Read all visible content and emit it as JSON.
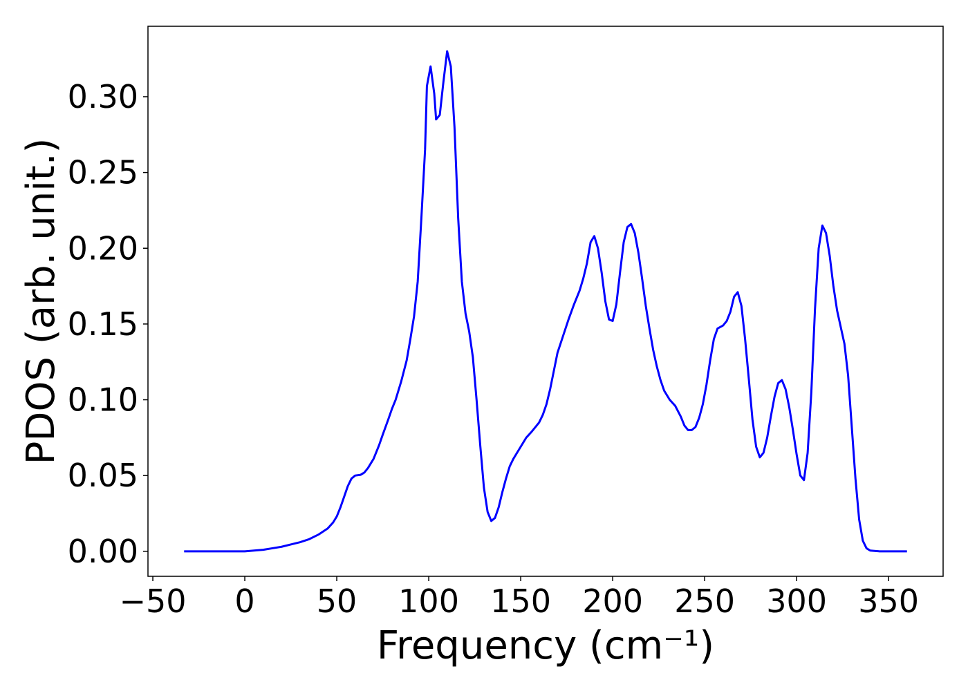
{
  "chart_data": {
    "type": "line",
    "xlabel": "Frequency (cm⁻¹)",
    "ylabel": "PDOS (arb. unit.)",
    "color": "#0000ff",
    "x": [
      -33,
      -20,
      0,
      5,
      10,
      15,
      20,
      25,
      30,
      35,
      40,
      45,
      48,
      50,
      52,
      54,
      56,
      58,
      60,
      63,
      65,
      67,
      70,
      73,
      75,
      78,
      80,
      82,
      85,
      88,
      90,
      92,
      94,
      96,
      98,
      99,
      101,
      103,
      104,
      106,
      108,
      110,
      112,
      114,
      116,
      118,
      120,
      122,
      124,
      126,
      128,
      130,
      132,
      134,
      136,
      138,
      140,
      142,
      144,
      146,
      148,
      150,
      153,
      156,
      158,
      160,
      162,
      164,
      166,
      168,
      170,
      173,
      176,
      179,
      182,
      184,
      186,
      188,
      190,
      192,
      194,
      196,
      198,
      200,
      202,
      204,
      206,
      208,
      210,
      212,
      214,
      216,
      218,
      220,
      222,
      224,
      226,
      228,
      231,
      234,
      237,
      239,
      241,
      243,
      245,
      247,
      249,
      251,
      253,
      255,
      257,
      260,
      262,
      264,
      266,
      268,
      270,
      272,
      274,
      276,
      278,
      280,
      282,
      284,
      286,
      288,
      290,
      292,
      294,
      296,
      298,
      300,
      302,
      304,
      306,
      308,
      310,
      312,
      314,
      316,
      318,
      320,
      322,
      324,
      326,
      328,
      330,
      332,
      334,
      336,
      338,
      340,
      345,
      360
    ],
    "values": [
      0,
      0,
      0,
      0.0005,
      0.001,
      0.002,
      0.003,
      0.0045,
      0.006,
      0.008,
      0.011,
      0.015,
      0.019,
      0.023,
      0.029,
      0.036,
      0.043,
      0.048,
      0.05,
      0.0505,
      0.052,
      0.055,
      0.061,
      0.07,
      0.077,
      0.087,
      0.094,
      0.1,
      0.112,
      0.126,
      0.14,
      0.155,
      0.178,
      0.22,
      0.265,
      0.307,
      0.32,
      0.302,
      0.285,
      0.288,
      0.31,
      0.33,
      0.32,
      0.28,
      0.22,
      0.178,
      0.157,
      0.145,
      0.128,
      0.1,
      0.07,
      0.042,
      0.026,
      0.02,
      0.022,
      0.029,
      0.039,
      0.048,
      0.056,
      0.061,
      0.065,
      0.069,
      0.075,
      0.079,
      0.082,
      0.085,
      0.09,
      0.097,
      0.107,
      0.119,
      0.131,
      0.142,
      0.153,
      0.163,
      0.172,
      0.18,
      0.19,
      0.204,
      0.208,
      0.2,
      0.184,
      0.165,
      0.153,
      0.152,
      0.163,
      0.184,
      0.204,
      0.214,
      0.216,
      0.21,
      0.197,
      0.18,
      0.162,
      0.147,
      0.133,
      0.122,
      0.113,
      0.106,
      0.1,
      0.096,
      0.089,
      0.083,
      0.08,
      0.08,
      0.082,
      0.088,
      0.097,
      0.11,
      0.126,
      0.14,
      0.147,
      0.149,
      0.152,
      0.158,
      0.168,
      0.171,
      0.162,
      0.14,
      0.114,
      0.087,
      0.069,
      0.062,
      0.065,
      0.075,
      0.089,
      0.102,
      0.111,
      0.113,
      0.107,
      0.095,
      0.08,
      0.064,
      0.05,
      0.047,
      0.065,
      0.105,
      0.16,
      0.2,
      0.215,
      0.21,
      0.195,
      0.175,
      0.159,
      0.148,
      0.137,
      0.116,
      0.082,
      0.048,
      0.021,
      0.007,
      0.002,
      0.0005,
      0,
      0
    ],
    "xlim": [
      -52.65,
      379.65
    ],
    "ylim": [
      -0.0165,
      0.3465
    ],
    "xticks": [
      {
        "value": -50,
        "label": "−50"
      },
      0,
      50,
      100,
      150,
      200,
      250,
      300,
      350
    ],
    "yticks": [
      {
        "value": 0,
        "label": "0.00"
      },
      0.05,
      {
        "value": 0.1,
        "label": "0.10"
      },
      0.15,
      {
        "value": 0.2,
        "label": "0.20"
      },
      0.25,
      {
        "value": 0.3,
        "label": "0.30"
      }
    ]
  }
}
